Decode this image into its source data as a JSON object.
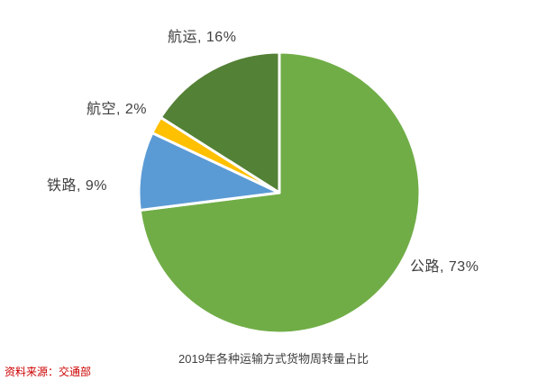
{
  "chart_data": {
    "type": "pie",
    "title": "2019年各种运输方式货物周转量占比",
    "start_angle_deg": 0,
    "direction": "clockwise",
    "legend_position": "none",
    "series": [
      {
        "name": "公路",
        "value": 73,
        "color": "#70AD47",
        "label": "公路, 73%"
      },
      {
        "name": "铁路",
        "value": 9,
        "color": "#5B9BD5",
        "label": "铁路, 9%"
      },
      {
        "name": "航空",
        "value": 2,
        "color": "#FFC000",
        "label": "航空, 2%"
      },
      {
        "name": "航运",
        "value": 16,
        "color": "#538135",
        "label": "航运, 16%"
      }
    ],
    "slice_border_color": "#FFFFFF"
  },
  "footer": {
    "source": "资料来源：交通部"
  }
}
